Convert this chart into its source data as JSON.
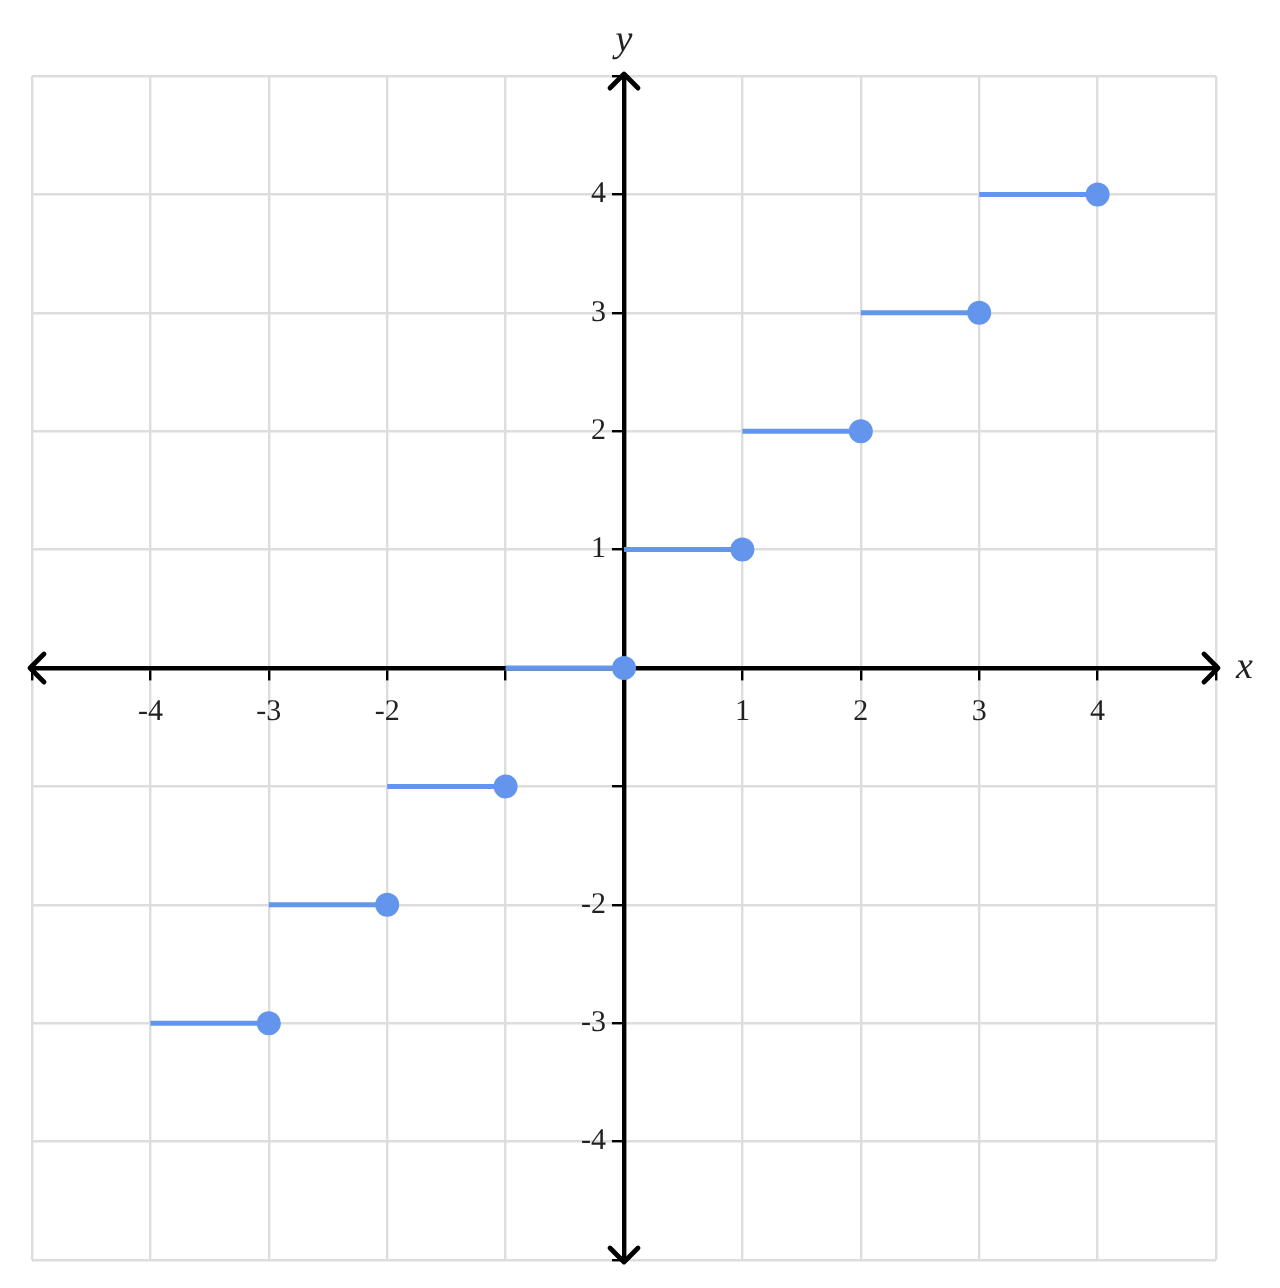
{
  "chart_data": {
    "type": "line",
    "xlabel": "x",
    "ylabel": "y",
    "xlim": [
      -5,
      5
    ],
    "ylim": [
      -5,
      5
    ],
    "xticks": [
      {
        "value": -5,
        "label": null
      },
      -4,
      -3,
      -2,
      {
        "value": -1,
        "label": null
      },
      {
        "value": 0,
        "label": null
      },
      1,
      2,
      3,
      4,
      {
        "value": 5,
        "label": null
      }
    ],
    "yticks": [
      {
        "value": -5,
        "label": null
      },
      -4,
      -3,
      -2,
      {
        "value": -1,
        "label": null
      },
      {
        "value": 0,
        "label": null
      },
      1,
      2,
      3,
      4,
      {
        "value": 5,
        "label": null
      }
    ],
    "grid": true,
    "series": [
      {
        "color": "#6495ed",
        "marker": "none",
        "x": [
          -4,
          -3
        ],
        "values": [
          -3,
          -3
        ]
      },
      {
        "color": "#6495ed",
        "marker": "none",
        "x": [
          -3,
          -2
        ],
        "values": [
          -2,
          -2
        ]
      },
      {
        "color": "#6495ed",
        "marker": "none",
        "x": [
          -2,
          -1
        ],
        "values": [
          -1,
          -1
        ]
      },
      {
        "color": "#6495ed",
        "marker": "none",
        "x": [
          -1,
          0
        ],
        "values": [
          0,
          0
        ]
      },
      {
        "color": "#6495ed",
        "marker": "none",
        "x": [
          0,
          1
        ],
        "values": [
          1,
          1
        ]
      },
      {
        "color": "#6495ed",
        "marker": "none",
        "x": [
          1,
          2
        ],
        "values": [
          2,
          2
        ]
      },
      {
        "color": "#6495ed",
        "marker": "none",
        "x": [
          2,
          3
        ],
        "values": [
          3,
          3
        ]
      },
      {
        "color": "#6495ed",
        "marker": "none",
        "x": [
          3,
          4
        ],
        "values": [
          4,
          4
        ]
      },
      {
        "type": "scatter",
        "color": "#6495ed",
        "marker": "circle",
        "x": [
          -3,
          -2,
          -1,
          0,
          1,
          2,
          3,
          4
        ],
        "values": [
          -3,
          -2,
          -1,
          0,
          1,
          2,
          3,
          4
        ]
      }
    ]
  }
}
